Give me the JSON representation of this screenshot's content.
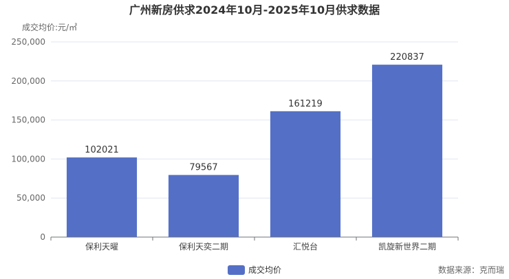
{
  "chart_data": {
    "type": "bar",
    "title": "广州新房供求2024年10月-2025年10月供求数据",
    "ylabel": "成交均价:元/㎡",
    "categories": [
      "保利天曜",
      "保利天奕二期",
      "汇悦台",
      "凯旋新世界二期"
    ],
    "series": [
      {
        "name": "成交均价",
        "values": [
          102021,
          79567,
          161219,
          220837
        ],
        "color": "#5470c6"
      }
    ],
    "ylim": [
      0,
      250000
    ],
    "yticks": [
      0,
      50000,
      100000,
      150000,
      200000,
      250000
    ],
    "ytick_labels": [
      "0",
      "50,000",
      "100,000",
      "150,000",
      "200,000",
      "250,000"
    ],
    "grid": true,
    "legend": "bottom-center"
  },
  "footer": {
    "source": "数据来源：克而瑞"
  }
}
